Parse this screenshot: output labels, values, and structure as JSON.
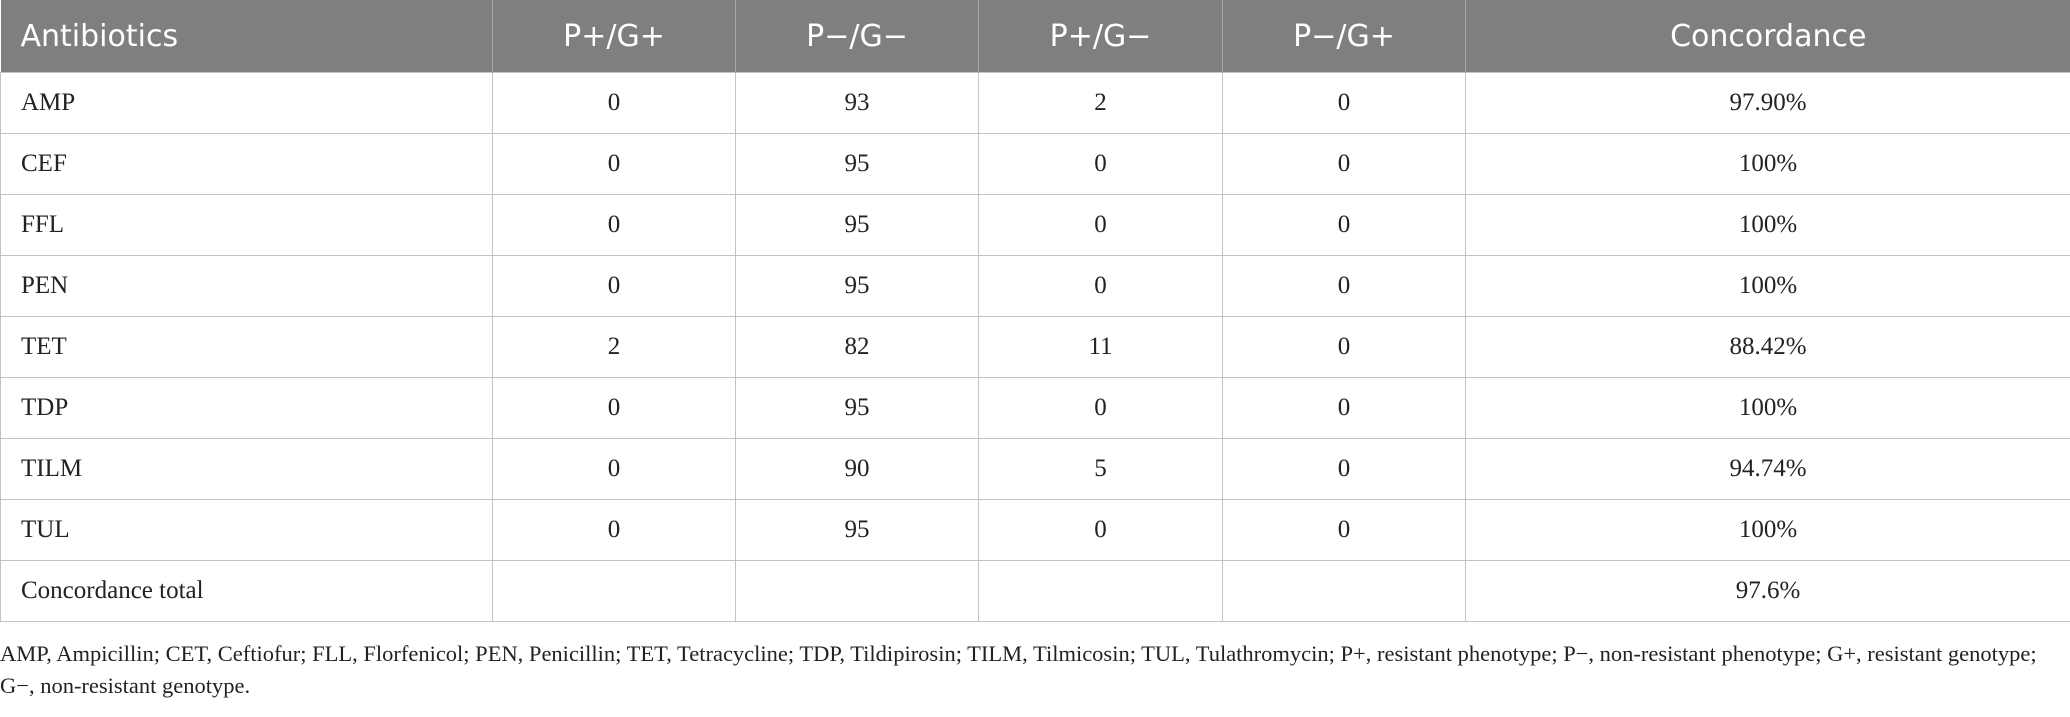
{
  "table": {
    "header": [
      "Antibiotics",
      "P+/G+",
      "P−/G−",
      "P+/G−",
      "P−/G+",
      "Concordance"
    ],
    "rows": [
      [
        "AMP",
        0,
        93,
        2,
        0,
        "97.90%"
      ],
      [
        "CEF",
        0,
        95,
        0,
        0,
        "100%"
      ],
      [
        "FFL",
        0,
        95,
        0,
        0,
        "100%"
      ],
      [
        "PEN",
        0,
        95,
        0,
        0,
        "100%"
      ],
      [
        "TET",
        2,
        82,
        11,
        0,
        "88.42%"
      ],
      [
        "TDP",
        0,
        95,
        0,
        0,
        "100%"
      ],
      [
        "TILM",
        0,
        90,
        5,
        0,
        "94.74%"
      ],
      [
        "TUL",
        0,
        95,
        0,
        0,
        "100%"
      ]
    ],
    "total": {
      "label": "Concordance total",
      "value": "97.6%"
    }
  },
  "footnote": "AMP, Ampicillin; CET, Ceftiofur; FLL, Florfenicol; PEN, Penicillin; TET, Tetracycline; TDP, Tildipirosin; TILM, Tilmicosin; TUL, Tulathromycin; P+, resistant phenotype; P−, non-resistant phenotype; G+, resistant genotype; G−, non-resistant genotype."
}
